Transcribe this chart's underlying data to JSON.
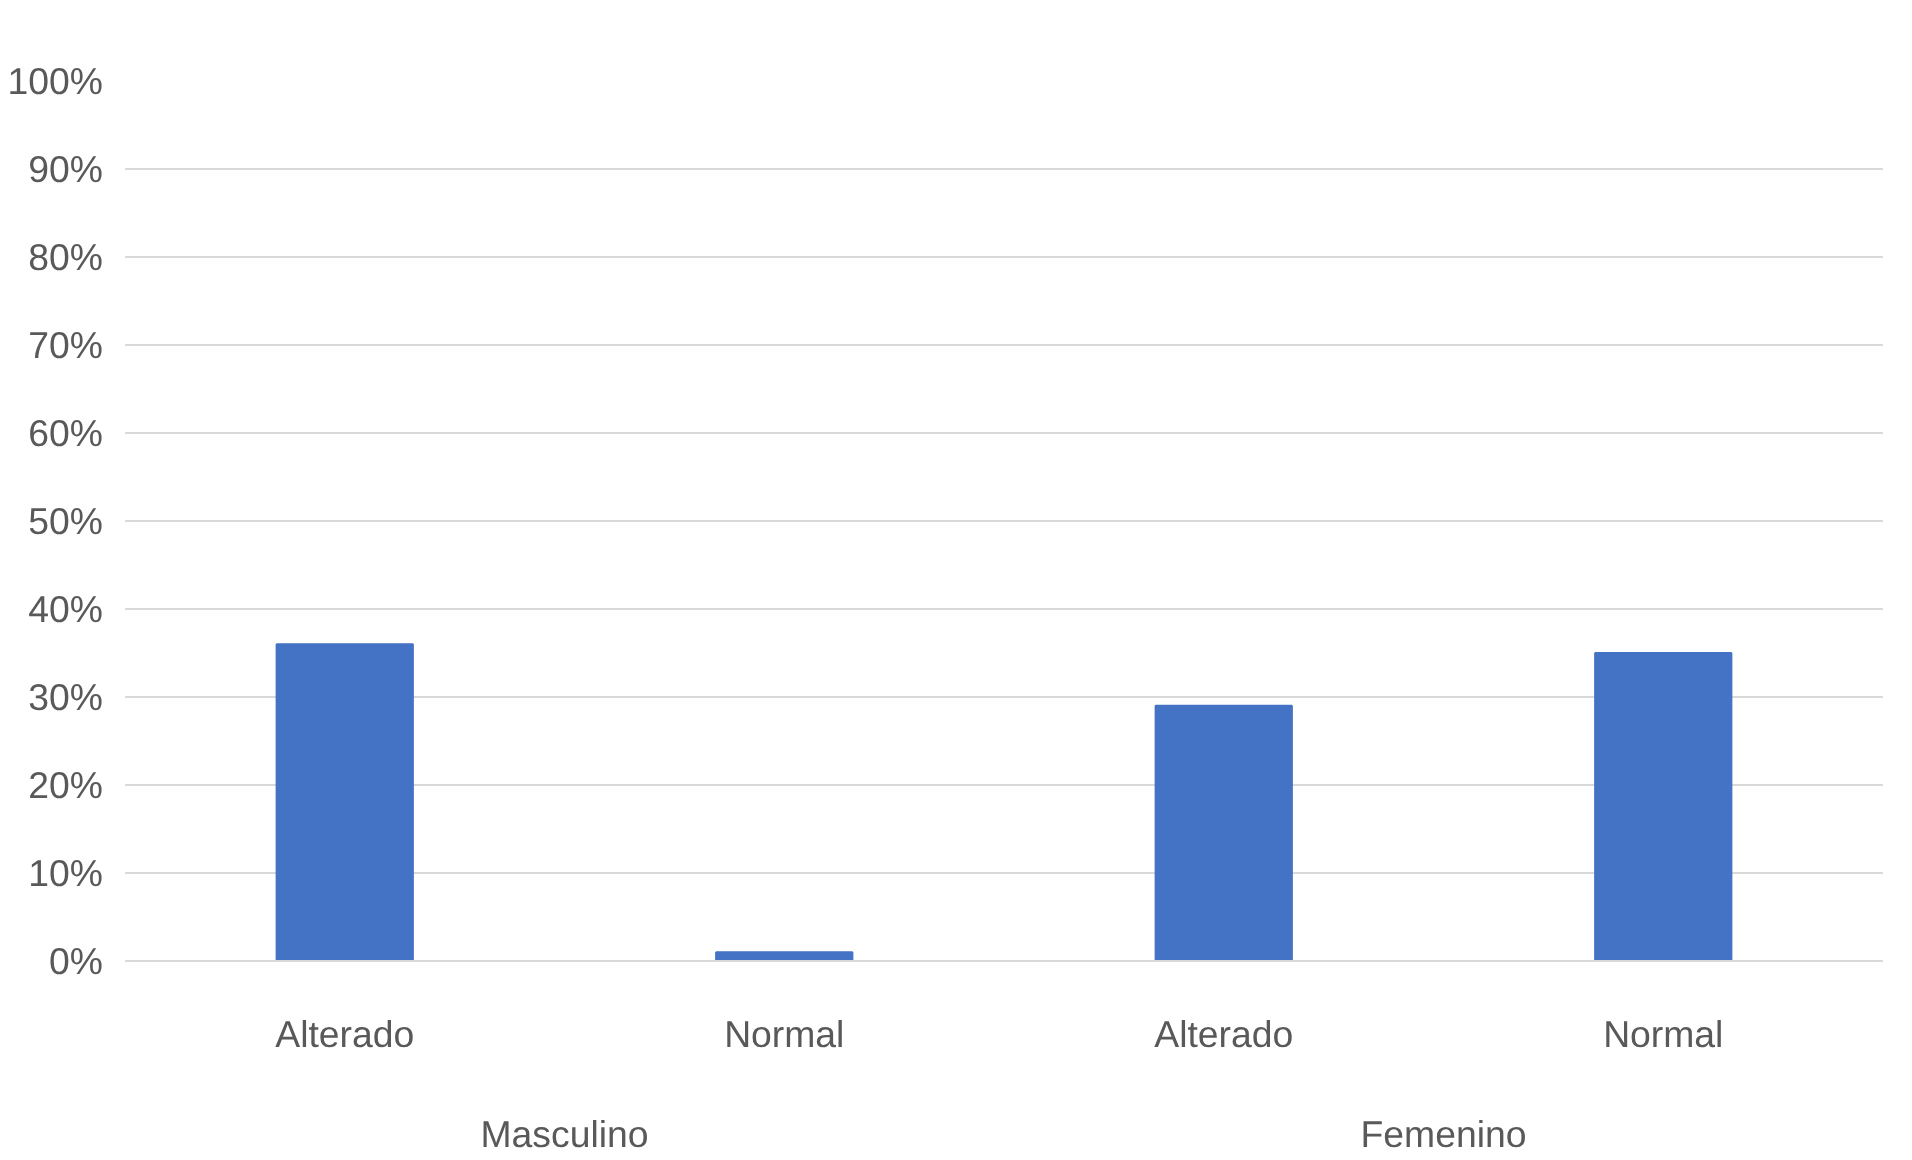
{
  "chart_data": {
    "type": "bar",
    "categories": [
      "Alterado",
      "Normal",
      "Alterado",
      "Normal"
    ],
    "values": [
      36,
      1,
      29,
      35
    ],
    "color": "#4472c4",
    "ylim": [
      0,
      100
    ],
    "yticks": [
      {
        "value": 0,
        "label": "0%"
      },
      {
        "value": 10,
        "label": "10%"
      },
      {
        "value": 20,
        "label": "20%"
      },
      {
        "value": 30,
        "label": "30%"
      },
      {
        "value": 40,
        "label": "40%"
      },
      {
        "value": 50,
        "label": "50%"
      },
      {
        "value": 60,
        "label": "60%"
      },
      {
        "value": 70,
        "label": "70%"
      },
      {
        "value": 80,
        "label": "80%"
      },
      {
        "value": 90,
        "label": "90%"
      },
      {
        "value": 100,
        "label": "100%"
      }
    ],
    "annotations": [
      "Masculino",
      "Femenino"
    ],
    "grid": "y"
  }
}
